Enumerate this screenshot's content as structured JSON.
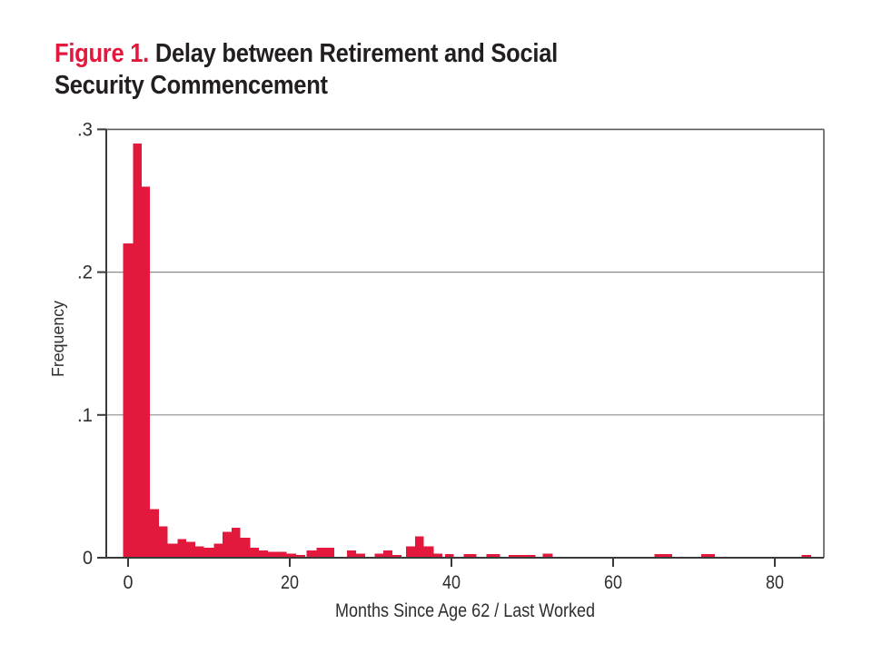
{
  "title": {
    "prefix": "Figure 1.",
    "line1": "Delay between Retirement and Social",
    "line2": "Security Commencement"
  },
  "colors": {
    "accent_red": "#e2183d",
    "title_text": "#231f20",
    "axis": "#3a3a3a",
    "frame": "#5a5a5a",
    "grid": "#8c8c8c",
    "tick_text": "#2e2e2e"
  },
  "chart_data": {
    "type": "bar",
    "title": "Figure 1. Delay between Retirement and Social Security Commencement",
    "xlabel": "Months Since Age 62 / Last Worked",
    "ylabel": "Frequency",
    "xlim": [
      -2.7,
      86.1
    ],
    "ylim": [
      0,
      0.3
    ],
    "grid": "horizontal gridlines at .1, .2, .3",
    "legend": "none",
    "bar_color": "#e2183d",
    "x_ticks": [
      {
        "m": 0,
        "label": "0"
      },
      {
        "m": 20,
        "label": "20"
      },
      {
        "m": 40,
        "label": "40"
      },
      {
        "m": 60,
        "label": "60"
      },
      {
        "m": 80,
        "label": "80"
      }
    ],
    "y_ticks": [
      {
        "v": 0,
        "label": "0"
      },
      {
        "v": 0.1,
        "label": ".1"
      },
      {
        "v": 0.2,
        "label": ".2"
      },
      {
        "v": 0.3,
        "label": ".3"
      }
    ],
    "bars": [
      {
        "x0": -0.6,
        "x1": 0.6,
        "f": 0.22
      },
      {
        "x0": 0.6,
        "x1": 1.7,
        "f": 0.29
      },
      {
        "x0": 1.7,
        "x1": 2.7,
        "f": 0.26
      },
      {
        "x0": 2.7,
        "x1": 3.8,
        "f": 0.034
      },
      {
        "x0": 3.8,
        "x1": 4.9,
        "f": 0.022
      },
      {
        "x0": 4.9,
        "x1": 6.1,
        "f": 0.01
      },
      {
        "x0": 6.1,
        "x1": 7.2,
        "f": 0.013
      },
      {
        "x0": 7.2,
        "x1": 8.3,
        "f": 0.011
      },
      {
        "x0": 8.3,
        "x1": 9.4,
        "f": 0.008
      },
      {
        "x0": 9.4,
        "x1": 10.6,
        "f": 0.007
      },
      {
        "x0": 10.6,
        "x1": 11.7,
        "f": 0.01
      },
      {
        "x0": 11.7,
        "x1": 12.8,
        "f": 0.018
      },
      {
        "x0": 12.8,
        "x1": 13.9,
        "f": 0.021
      },
      {
        "x0": 13.9,
        "x1": 15.1,
        "f": 0.014
      },
      {
        "x0": 15.1,
        "x1": 16.2,
        "f": 0.007
      },
      {
        "x0": 16.2,
        "x1": 17.3,
        "f": 0.005
      },
      {
        "x0": 17.3,
        "x1": 19.6,
        "f": 0.004
      },
      {
        "x0": 19.6,
        "x1": 20.8,
        "f": 0.003
      },
      {
        "x0": 20.8,
        "x1": 21.9,
        "f": 0.002
      },
      {
        "x0": 22.1,
        "x1": 23.3,
        "f": 0.005
      },
      {
        "x0": 23.3,
        "x1": 25.5,
        "f": 0.007
      },
      {
        "x0": 27.1,
        "x1": 28.2,
        "f": 0.005
      },
      {
        "x0": 28.2,
        "x1": 29.3,
        "f": 0.003
      },
      {
        "x0": 30.5,
        "x1": 31.6,
        "f": 0.003
      },
      {
        "x0": 31.6,
        "x1": 32.7,
        "f": 0.005
      },
      {
        "x0": 32.7,
        "x1": 33.8,
        "f": 0.002
      },
      {
        "x0": 34.4,
        "x1": 35.5,
        "f": 0.008
      },
      {
        "x0": 35.5,
        "x1": 36.6,
        "f": 0.015
      },
      {
        "x0": 36.6,
        "x1": 37.8,
        "f": 0.008
      },
      {
        "x0": 37.8,
        "x1": 38.9,
        "f": 0.003
      },
      {
        "x0": 39.2,
        "x1": 40.3,
        "f": 0.0025
      },
      {
        "x0": 41.5,
        "x1": 43.1,
        "f": 0.0025
      },
      {
        "x0": 44.3,
        "x1": 46.0,
        "f": 0.0025
      },
      {
        "x0": 47.1,
        "x1": 50.4,
        "f": 0.002
      },
      {
        "x0": 51.3,
        "x1": 52.5,
        "f": 0.003
      },
      {
        "x0": 65.1,
        "x1": 67.3,
        "f": 0.0025
      },
      {
        "x0": 70.9,
        "x1": 72.6,
        "f": 0.0025
      },
      {
        "x0": 83.3,
        "x1": 84.5,
        "f": 0.002
      }
    ]
  }
}
